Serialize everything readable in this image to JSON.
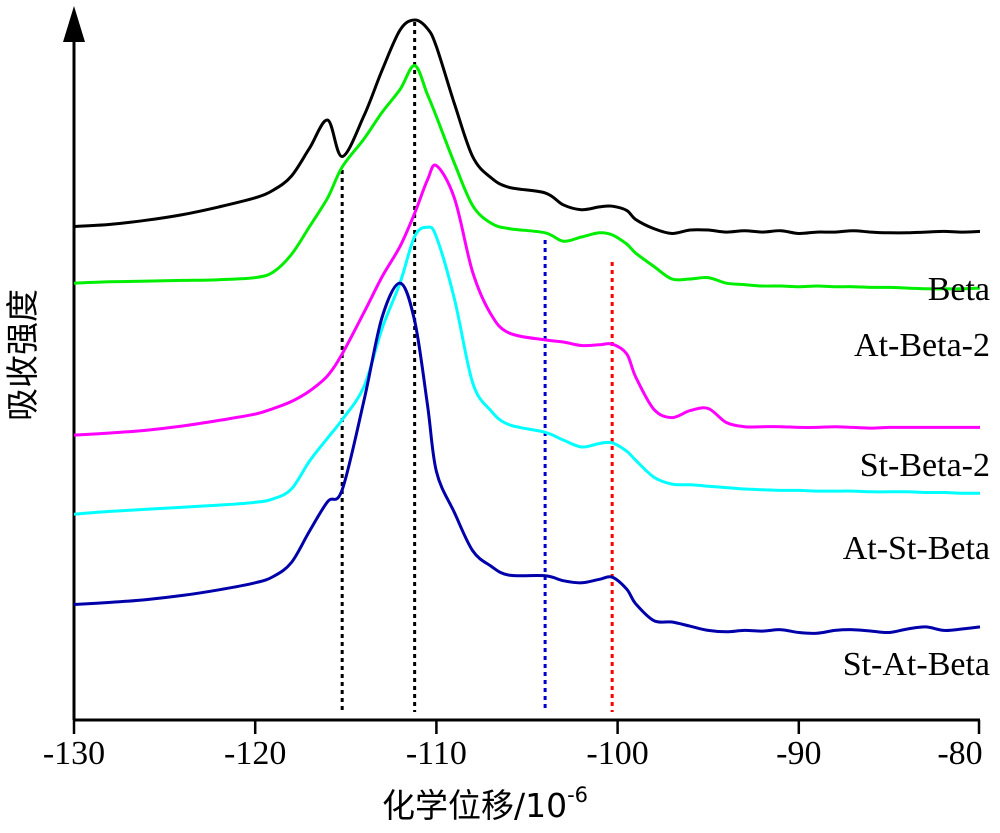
{
  "chart_data": {
    "type": "line",
    "title": "",
    "xlabel": "化学位移/10",
    "xlabel_sup": "-6",
    "ylabel": "吸收强度",
    "xlim": [
      -130,
      -80
    ],
    "ylim": [
      0,
      1
    ],
    "grid": false,
    "y_ticks": false,
    "x_ticks": [
      -130,
      -120,
      -110,
      -100,
      -90,
      -80
    ],
    "x_tick_labels": [
      "-130",
      "-120",
      "-110",
      "-100",
      "-90",
      "-80"
    ],
    "reference_lines": [
      {
        "x": -115.2,
        "color": "#000000"
      },
      {
        "x": -111.2,
        "color": "#000000"
      },
      {
        "x": -104.0,
        "color": "#0000cc"
      },
      {
        "x": -100.3,
        "color": "#ff0000"
      }
    ],
    "series": [
      {
        "name": "Beta",
        "color": "#000000",
        "x": [
          -130,
          -128,
          -126,
          -124,
          -122,
          -120,
          -119,
          -118,
          -117,
          -116,
          -115.2,
          -114,
          -113,
          -112,
          -111.2,
          -110.5,
          -110,
          -109,
          -108,
          -107,
          -106,
          -104,
          -103,
          -102,
          -101,
          -100.3,
          -99.5,
          -99,
          -98,
          -97,
          -96,
          -95,
          -94,
          -93,
          -92,
          -91,
          -90,
          -89,
          -88,
          -87,
          -86,
          -85,
          -84,
          -83,
          -82,
          -81,
          -80
        ],
        "values": [
          0.705,
          0.708,
          0.714,
          0.722,
          0.733,
          0.746,
          0.757,
          0.777,
          0.817,
          0.857,
          0.805,
          0.863,
          0.928,
          0.986,
          1.0,
          0.988,
          0.962,
          0.88,
          0.805,
          0.775,
          0.761,
          0.753,
          0.736,
          0.729,
          0.733,
          0.734,
          0.728,
          0.715,
          0.702,
          0.695,
          0.7,
          0.7,
          0.697,
          0.699,
          0.697,
          0.699,
          0.695,
          0.697,
          0.697,
          0.699,
          0.697,
          0.696,
          0.696,
          0.697,
          0.698,
          0.697,
          0.698
        ]
      },
      {
        "name": "At-Beta-2",
        "color": "#00ee00",
        "x": [
          -130,
          -128,
          -126,
          -124,
          -122,
          -120,
          -119,
          -118,
          -117,
          -116,
          -115.2,
          -114,
          -113,
          -112,
          -111.2,
          -110.5,
          -110,
          -109,
          -108,
          -107,
          -106,
          -104,
          -103,
          -102,
          -101,
          -100.3,
          -99.5,
          -99,
          -98,
          -97,
          -96,
          -95,
          -94,
          -93,
          -92,
          -91,
          -90,
          -89,
          -88,
          -87,
          -86,
          -85,
          -84,
          -83,
          -82,
          -81,
          -80
        ],
        "values": [
          0.624,
          0.626,
          0.627,
          0.628,
          0.629,
          0.632,
          0.64,
          0.665,
          0.705,
          0.746,
          0.79,
          0.83,
          0.868,
          0.901,
          0.935,
          0.894,
          0.862,
          0.795,
          0.735,
          0.71,
          0.702,
          0.696,
          0.684,
          0.69,
          0.696,
          0.693,
          0.68,
          0.667,
          0.648,
          0.63,
          0.63,
          0.632,
          0.624,
          0.622,
          0.62,
          0.62,
          0.619,
          0.62,
          0.619,
          0.619,
          0.618,
          0.618,
          0.617,
          0.616,
          0.616,
          0.616,
          0.617
        ]
      },
      {
        "name": "St-Beta-2",
        "color": "#ff00ff",
        "x": [
          -130,
          -128,
          -126,
          -124,
          -122,
          -120,
          -119,
          -118,
          -117,
          -116,
          -115.2,
          -114,
          -113,
          -112,
          -111.2,
          -110.5,
          -110,
          -109,
          -108,
          -107,
          -106,
          -104,
          -103,
          -102,
          -101,
          -100.3,
          -99.5,
          -99,
          -98,
          -97,
          -96,
          -95,
          -94,
          -93,
          -92,
          -91,
          -90,
          -89,
          -88,
          -87,
          -86,
          -85,
          -84,
          -83,
          -82,
          -81,
          -80
        ],
        "values": [
          0.407,
          0.41,
          0.414,
          0.42,
          0.428,
          0.437,
          0.445,
          0.455,
          0.47,
          0.492,
          0.523,
          0.582,
          0.633,
          0.677,
          0.724,
          0.771,
          0.792,
          0.745,
          0.64,
          0.58,
          0.553,
          0.543,
          0.54,
          0.535,
          0.536,
          0.537,
          0.523,
          0.49,
          0.444,
          0.432,
          0.442,
          0.445,
          0.425,
          0.419,
          0.419,
          0.419,
          0.418,
          0.418,
          0.419,
          0.418,
          0.417,
          0.418,
          0.418,
          0.418,
          0.418,
          0.418,
          0.418
        ]
      },
      {
        "name": "At-St-Beta",
        "color": "#00ffff",
        "x": [
          -130,
          -128,
          -126,
          -124,
          -122,
          -120,
          -119,
          -118,
          -117,
          -116,
          -115.2,
          -114,
          -113,
          -112,
          -111.2,
          -110.5,
          -110,
          -109,
          -108,
          -107,
          -106,
          -104,
          -103,
          -102,
          -101,
          -100.3,
          -99.5,
          -99,
          -98,
          -97,
          -96,
          -95,
          -94,
          -93,
          -92,
          -91,
          -90,
          -89,
          -88,
          -87,
          -86,
          -85,
          -84,
          -83,
          -82,
          -81,
          -80
        ],
        "values": [
          0.294,
          0.298,
          0.301,
          0.304,
          0.307,
          0.311,
          0.316,
          0.33,
          0.37,
          0.403,
          0.429,
          0.476,
          0.559,
          0.625,
          0.691,
          0.704,
          0.69,
          0.601,
          0.482,
          0.442,
          0.422,
          0.411,
          0.4,
          0.39,
          0.395,
          0.396,
          0.384,
          0.371,
          0.347,
          0.337,
          0.336,
          0.334,
          0.332,
          0.33,
          0.329,
          0.328,
          0.328,
          0.327,
          0.327,
          0.327,
          0.326,
          0.326,
          0.326,
          0.325,
          0.325,
          0.324,
          0.324
        ]
      },
      {
        "name": "St-At-Beta",
        "color": "#0000aa",
        "x": [
          -130,
          -128,
          -126,
          -124,
          -122,
          -120,
          -119,
          -118,
          -117,
          -116,
          -115.2,
          -114,
          -113,
          -112,
          -111.2,
          -110.5,
          -110,
          -109,
          -108,
          -107,
          -106,
          -104,
          -103,
          -102,
          -101,
          -100.3,
          -99.5,
          -99,
          -98,
          -97,
          -96,
          -95,
          -94,
          -93,
          -92,
          -91,
          -90,
          -89,
          -88,
          -87,
          -86,
          -85,
          -84,
          -83,
          -82,
          -81,
          -80
        ],
        "values": [
          0.165,
          0.168,
          0.172,
          0.178,
          0.186,
          0.196,
          0.205,
          0.225,
          0.27,
          0.312,
          0.329,
          0.456,
          0.575,
          0.624,
          0.57,
          0.452,
          0.355,
          0.296,
          0.242,
          0.22,
          0.207,
          0.206,
          0.199,
          0.196,
          0.201,
          0.204,
          0.187,
          0.166,
          0.142,
          0.14,
          0.134,
          0.128,
          0.126,
          0.128,
          0.127,
          0.129,
          0.125,
          0.124,
          0.128,
          0.129,
          0.127,
          0.125,
          0.13,
          0.133,
          0.128,
          0.13,
          0.133
        ]
      }
    ]
  }
}
